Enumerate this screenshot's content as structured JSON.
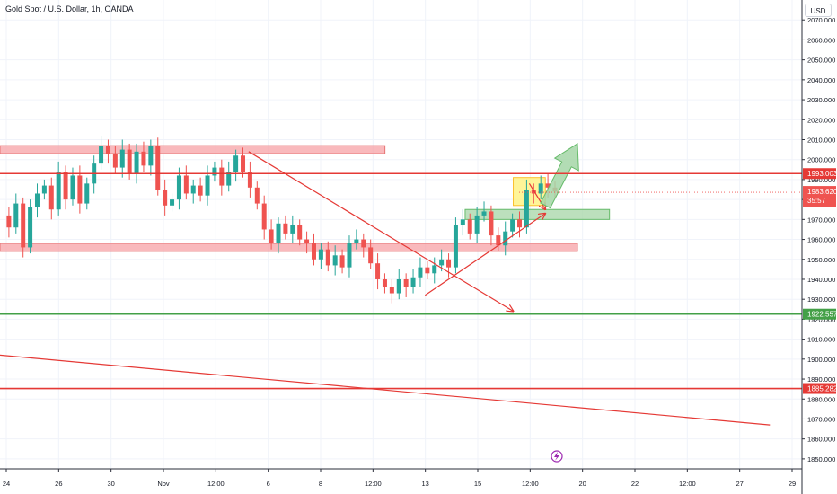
{
  "title": "Gold Spot / U.S. Dollar, 1h, OANDA",
  "currency": "USD",
  "event_icon": "lightning-icon",
  "colors": {
    "up": "#26a69a",
    "down": "#ef5350",
    "resistance_line": "#e53935",
    "support_line": "#43a047",
    "zone_red": "#f7a1a5",
    "zone_green": "#a5d6a7",
    "highlight": "#fff176",
    "grid": "#f0f3fa"
  },
  "chart_data": {
    "type": "candlestick",
    "ylim": [
      1845,
      2080
    ],
    "y_ticks": [
      "1850.000",
      "1860.000",
      "1870.000",
      "1880.000",
      "1890.000",
      "1900.000",
      "1910.000",
      "1920.000",
      "1930.000",
      "1940.000",
      "1950.000",
      "1960.000",
      "1970.000",
      "1980.000",
      "1990.000",
      "2000.000",
      "2010.000",
      "2020.000",
      "2030.000",
      "2040.000",
      "2050.000",
      "2060.000",
      "2070.000"
    ],
    "x_ticks": [
      "24",
      "26",
      "30",
      "Nov",
      "12:00",
      "6",
      "8",
      "12:00",
      "13",
      "15",
      "12:00",
      "20",
      "22",
      "12:00",
      "27",
      "29"
    ],
    "price_path": [
      1972,
      1966,
      1978,
      1956,
      1976,
      1983,
      1987,
      1975,
      1994,
      1980,
      1992,
      1978,
      1988,
      1998,
      2007,
      2003,
      1996,
      2005,
      1993,
      2004,
      1997,
      2007,
      1985,
      1977,
      1980,
      1992,
      1983,
      1987,
      1982,
      1992,
      1996,
      1987,
      1994,
      2002,
      1994,
      1986,
      1978,
      1965,
      1958,
      1968,
      1963,
      1967,
      1960,
      1958,
      1950,
      1955,
      1947,
      1952,
      1946,
      1958,
      1960,
      1956,
      1948,
      1940,
      1936,
      1933,
      1940,
      1936,
      1941,
      1946,
      1943,
      1947,
      1950,
      1946,
      1967,
      1970,
      1963,
      1972,
      1974,
      1962,
      1957,
      1964,
      1970,
      1966,
      1985,
      1983,
      1988,
      1986,
      1984
    ],
    "horizontal_levels": [
      {
        "label": "1993.003",
        "value": 1993.003,
        "color": "#e53935"
      },
      {
        "label": "1922.557",
        "value": 1922.557,
        "color": "#43a047"
      },
      {
        "label": "1885.282",
        "value": 1885.282,
        "color": "#e53935"
      }
    ],
    "current_price": {
      "label": "1983.620",
      "value": 1983.62,
      "countdown": "35:57"
    },
    "zones": [
      {
        "kind": "resistance",
        "y_top": 2007,
        "y_bottom": 2003,
        "x_start": 0,
        "x_end": 0.48
      },
      {
        "kind": "support",
        "y_top": 1958,
        "y_bottom": 1954,
        "x_start": 0,
        "x_end": 0.72
      },
      {
        "kind": "demand",
        "y_top": 1975,
        "y_bottom": 1970,
        "x_start": 0.58,
        "x_end": 0.76
      },
      {
        "kind": "highlight",
        "y_top": 1991,
        "y_bottom": 1977,
        "x_start": 0.64,
        "x_end": 0.68
      }
    ],
    "trendlines": [
      {
        "from": [
          0.31,
          2004
        ],
        "to": [
          0.64,
          1924
        ],
        "arrow": true
      },
      {
        "from": [
          0.53,
          1932
        ],
        "to": [
          0.68,
          1973
        ],
        "arrow": true
      },
      {
        "from": [
          0,
          1902
        ],
        "to": [
          0.96,
          1867
        ],
        "arrow": false
      }
    ],
    "projection_arrows": [
      {
        "kind": "bearish-small",
        "from": [
          0.66,
          1988
        ],
        "to": [
          0.68,
          1975
        ]
      },
      {
        "kind": "bullish-large",
        "from": [
          0.68,
          1977
        ],
        "to": [
          0.72,
          2008
        ]
      }
    ]
  }
}
